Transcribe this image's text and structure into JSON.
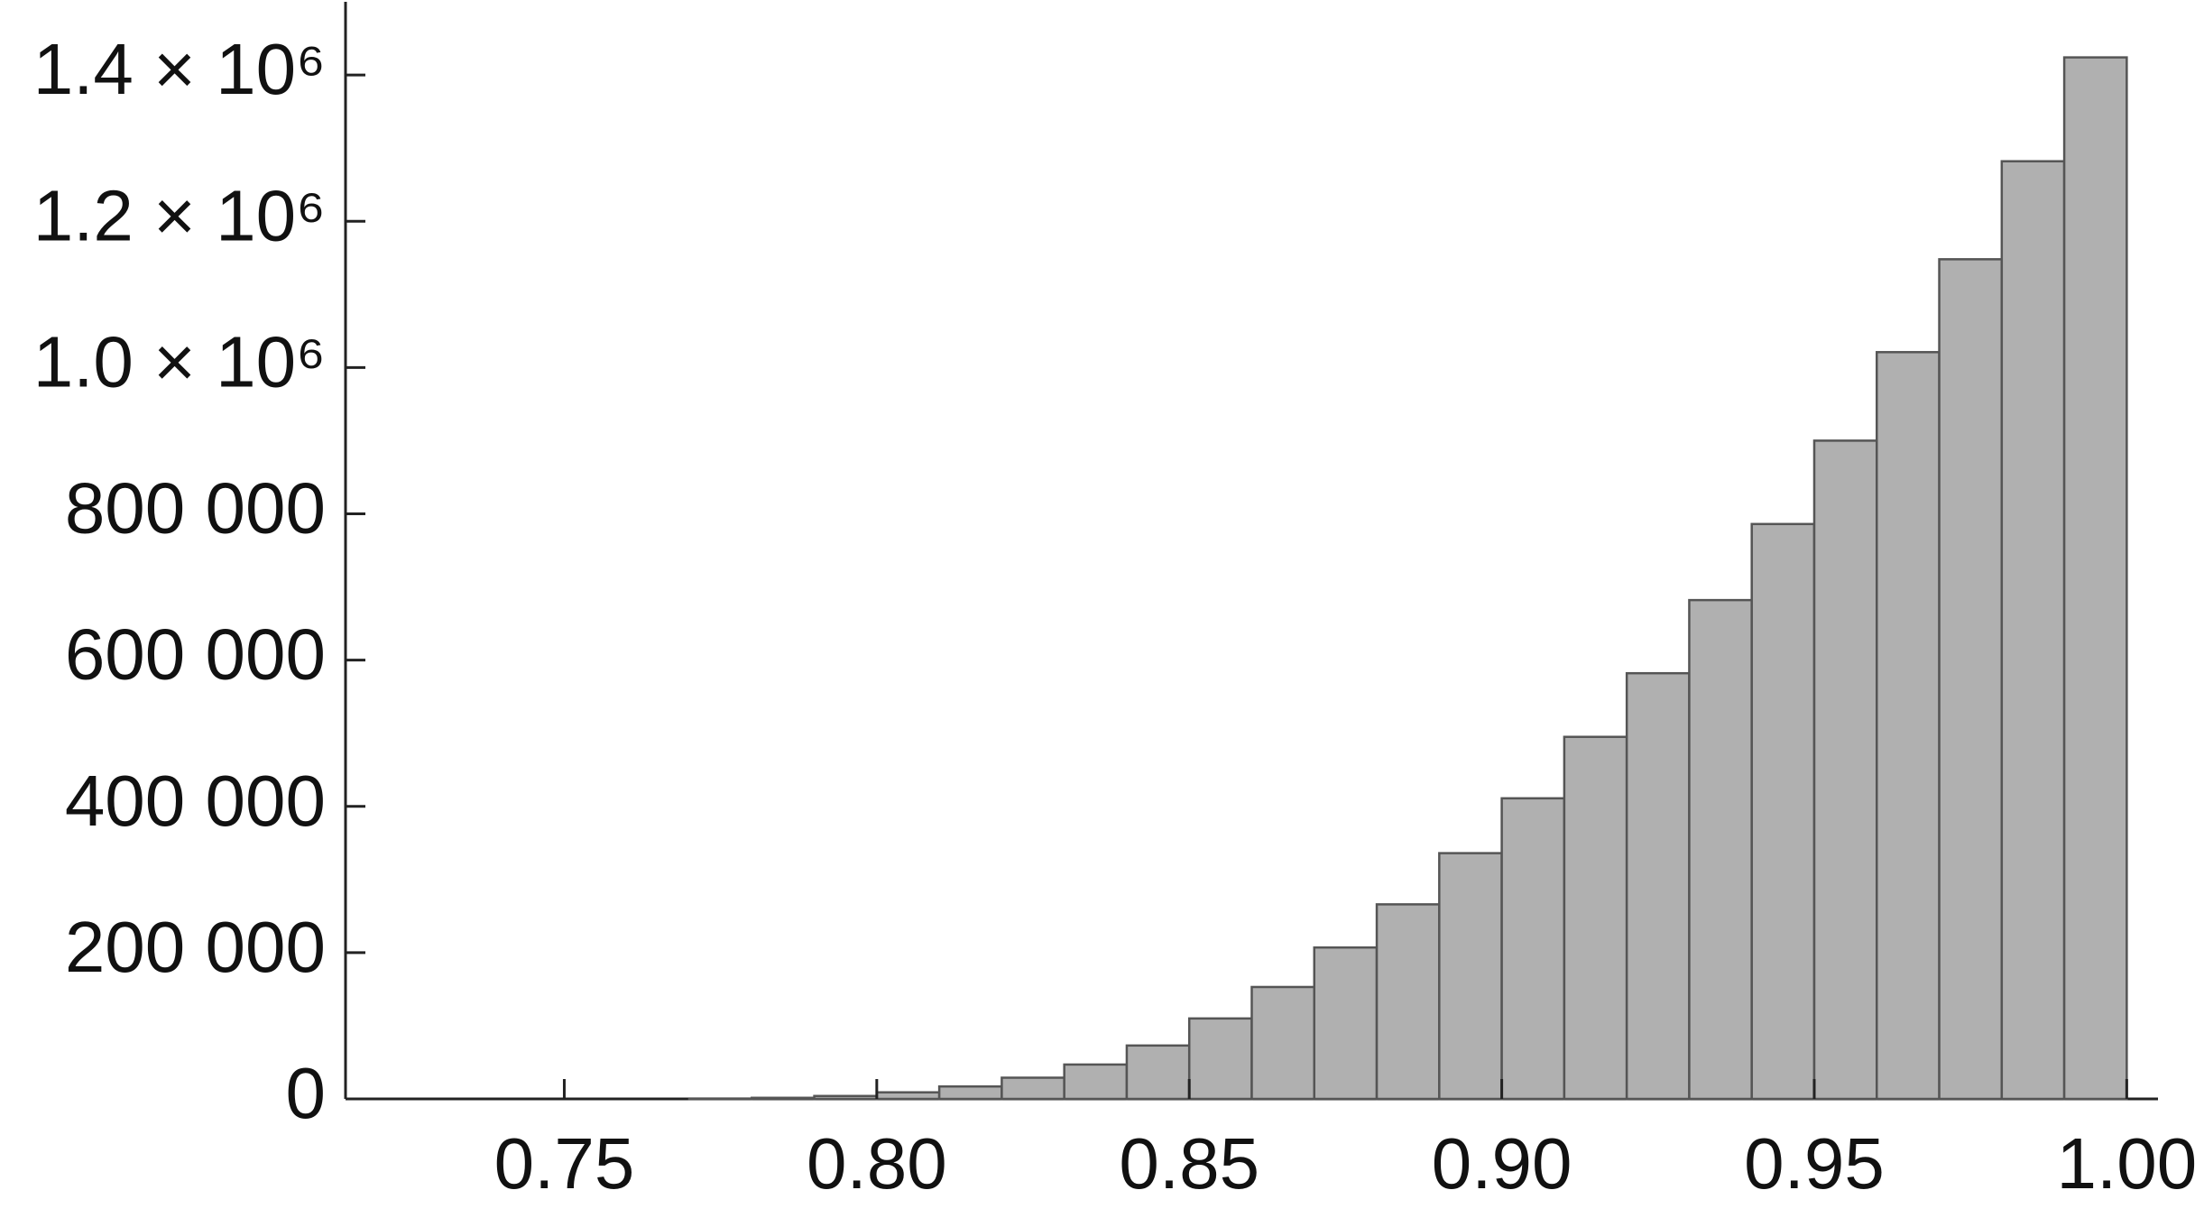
{
  "chart_data": {
    "type": "histogram",
    "bins": [
      0.72,
      0.73,
      0.74,
      0.75,
      0.76,
      0.77,
      0.78,
      0.79,
      0.8,
      0.81,
      0.82,
      0.83,
      0.84,
      0.85,
      0.86,
      0.87,
      0.88,
      0.89,
      0.9,
      0.91,
      0.92,
      0.93,
      0.94,
      0.95,
      0.96,
      0.97,
      0.98,
      0.99,
      1.0
    ],
    "values": [
      0,
      0,
      0,
      0,
      0,
      500,
      1500,
      4000,
      9000,
      17000,
      29000,
      47000,
      73000,
      110000,
      153000,
      207000,
      266000,
      336000,
      411000,
      495000,
      582000,
      682000,
      786000,
      900000,
      1021000,
      1148000,
      1282000,
      1424000
    ],
    "color": "#b0b0b0",
    "edge_color": "#555555",
    "xlim": [
      0.715,
      1.005
    ],
    "xticks": [
      0.75,
      {
        "value": 0.8,
        "label": "0.80"
      },
      0.85,
      {
        "value": 0.9,
        "label": "0.90"
      },
      0.95,
      {
        "value": 1.0,
        "label": "1.00"
      }
    ],
    "ylim": [
      0,
      1500000
    ],
    "yticks": [
      0,
      {
        "value": 200000,
        "label": "200 000"
      },
      {
        "value": 400000,
        "label": "400 000"
      },
      {
        "value": 600000,
        "label": "600 000"
      },
      {
        "value": 800000,
        "label": "800 000"
      },
      {
        "value": 1000000,
        "label": "1.0 × 10⁶"
      },
      {
        "value": 1200000,
        "label": "1.2 × 10⁶"
      },
      {
        "value": 1400000,
        "label": "1.4 × 10⁶"
      }
    ],
    "grid": false
  }
}
